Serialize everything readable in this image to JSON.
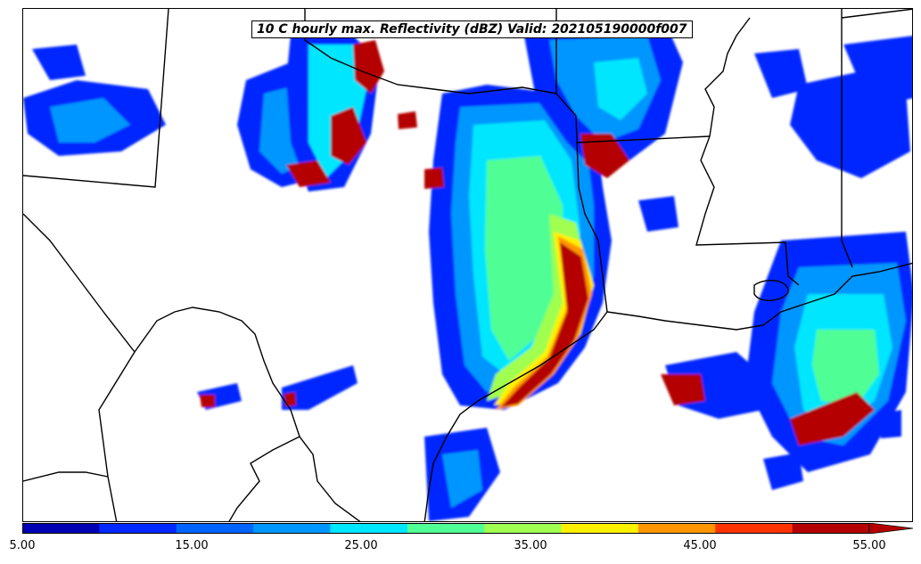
{
  "title": "10 C hourly max. Reflectivity (dBZ) Valid: 202105190000f007",
  "colorbar": {
    "levels": [
      5,
      10,
      15,
      20,
      25,
      30,
      35,
      40,
      45,
      50,
      55
    ],
    "colors": [
      "#0000b4",
      "#0028ff",
      "#0064ff",
      "#0096ff",
      "#00e6ff",
      "#50ff96",
      "#a0ff50",
      "#fff000",
      "#ff9600",
      "#ff3200",
      "#b40000"
    ],
    "extend_color": "#b40000",
    "tick_labels": [
      "5.00",
      "15.00",
      "25.00",
      "35.00",
      "45.00",
      "55.00"
    ]
  },
  "map": {
    "background": "#ffffff",
    "boundary_color": "#000000"
  }
}
